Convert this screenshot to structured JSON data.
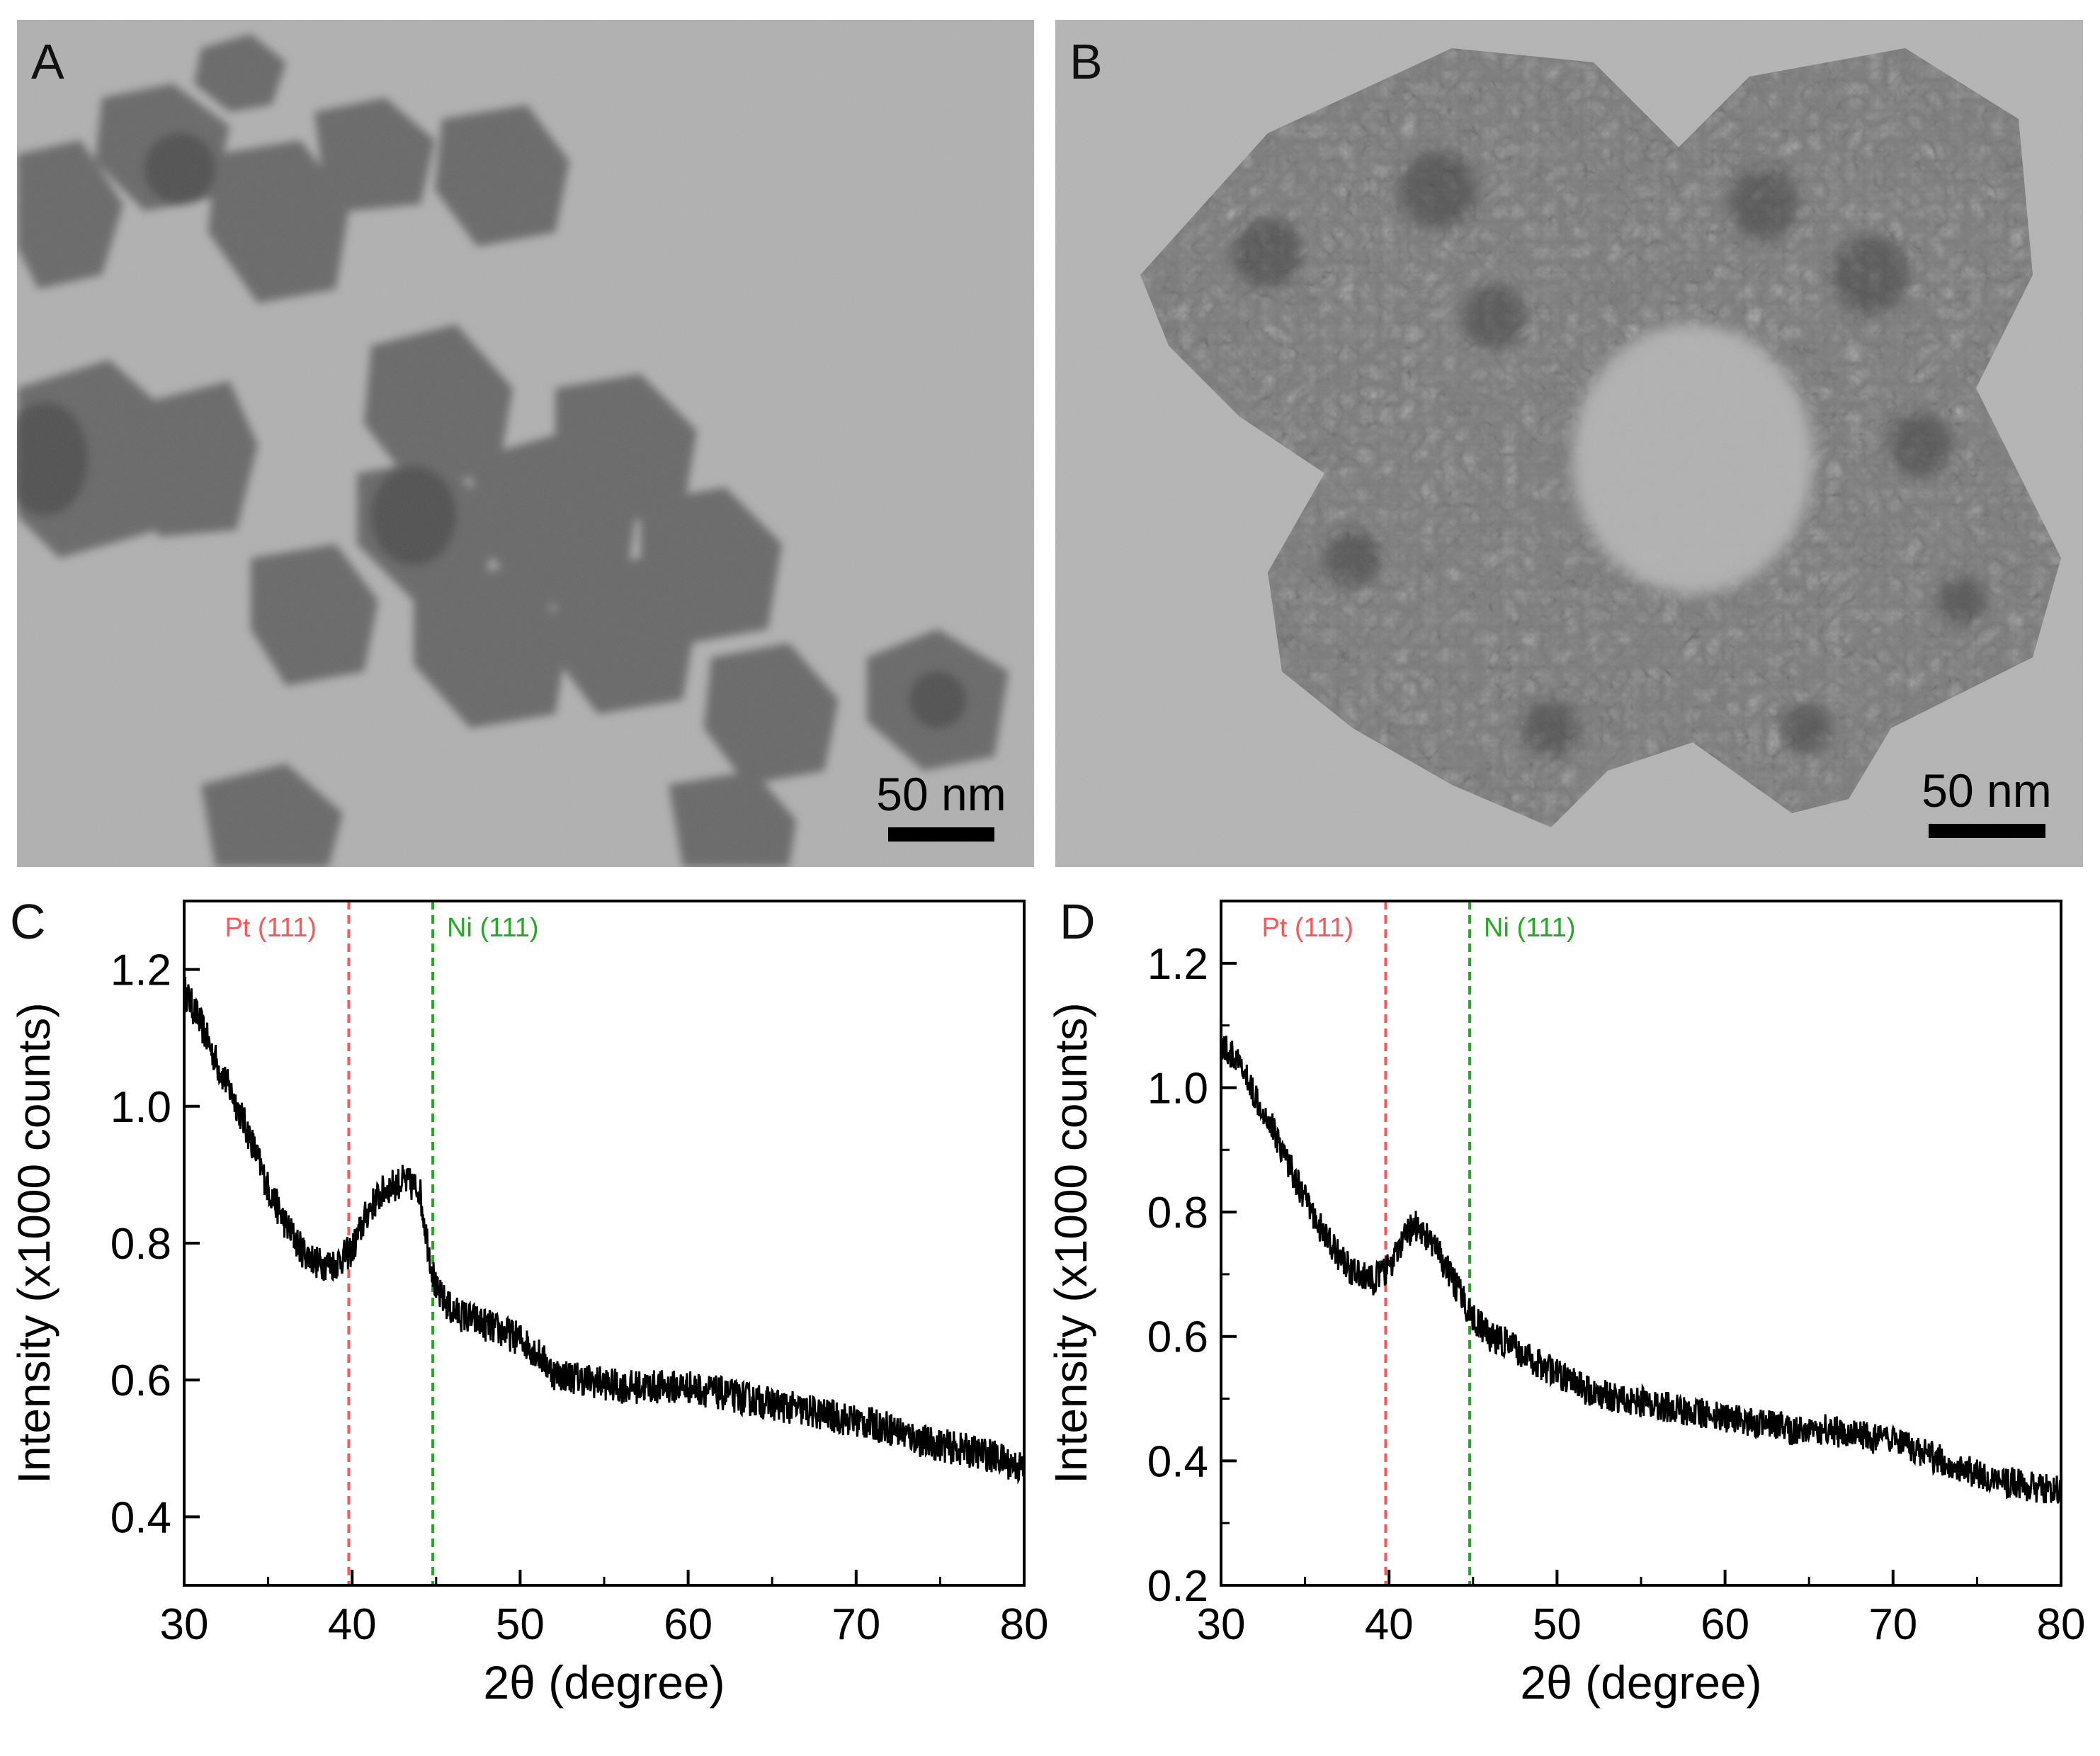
{
  "panels": {
    "A": {
      "letter": "A",
      "scale_label": "50 nm"
    },
    "B": {
      "letter": "B",
      "scale_label": "50 nm"
    },
    "C": {
      "letter": "C"
    },
    "D": {
      "letter": "D"
    }
  },
  "colors": {
    "pt_line": "#ff5555",
    "ni_line": "#22aa22",
    "trace": "#000000",
    "axis": "#000000"
  },
  "chart_data": [
    {
      "panel": "C",
      "type": "line",
      "xlabel": "2θ (degree)",
      "ylabel": "Intensity (x1000 counts)",
      "xlim": [
        30,
        80
      ],
      "ylim": [
        0.3,
        1.3
      ],
      "xticks": [
        30,
        40,
        50,
        60,
        70,
        80
      ],
      "xtick_labels": [
        "30",
        "40",
        "50",
        "60",
        "70",
        "80"
      ],
      "yticks": [
        0.4,
        0.6,
        0.8,
        1.0,
        1.2
      ],
      "ytick_labels": [
        "0.4",
        "0.6",
        "0.8",
        "1.0",
        "1.2"
      ],
      "reference_lines": [
        {
          "label": "Pt (111)",
          "x": 39.8,
          "color": "#ff5555"
        },
        {
          "label": "Ni (111)",
          "x": 44.8,
          "color": "#22aa22"
        }
      ],
      "series": [
        {
          "x": [
            30,
            31,
            32,
            33,
            34,
            35,
            36,
            37,
            38,
            39,
            40,
            41,
            42,
            43,
            44,
            44.5,
            45,
            46,
            47,
            48,
            49,
            50,
            51,
            52,
            54,
            56,
            58,
            60,
            62,
            64,
            66,
            68,
            70,
            72,
            74,
            76,
            78,
            80
          ],
          "y": [
            1.17,
            1.12,
            1.06,
            1.01,
            0.95,
            0.88,
            0.83,
            0.79,
            0.77,
            0.77,
            0.79,
            0.85,
            0.88,
            0.89,
            0.88,
            0.8,
            0.73,
            0.7,
            0.69,
            0.68,
            0.67,
            0.66,
            0.64,
            0.61,
            0.6,
            0.59,
            0.59,
            0.59,
            0.58,
            0.57,
            0.56,
            0.55,
            0.54,
            0.53,
            0.51,
            0.5,
            0.49,
            0.47
          ]
        }
      ]
    },
    {
      "panel": "D",
      "type": "line",
      "xlabel": "2θ (degree)",
      "ylabel": "Intensity (x1000 counts)",
      "xlim": [
        30,
        80
      ],
      "ylim": [
        0.2,
        1.3
      ],
      "xticks": [
        30,
        40,
        50,
        60,
        70,
        80
      ],
      "xtick_labels": [
        "30",
        "40",
        "50",
        "60",
        "70",
        "80"
      ],
      "yticks": [
        0.2,
        0.4,
        0.6,
        0.8,
        1.0,
        1.2
      ],
      "ytick_labels": [
        "0.2",
        "0.4",
        "0.6",
        "0.8",
        "1.0",
        "1.2"
      ],
      "reference_lines": [
        {
          "label": "Pt (111)",
          "x": 39.8,
          "color": "#ff5555"
        },
        {
          "label": "Ni (111)",
          "x": 44.8,
          "color": "#22aa22"
        }
      ],
      "series": [
        {
          "x": [
            30,
            31,
            32,
            33,
            34,
            35,
            36,
            37,
            38,
            39,
            40,
            41,
            41.5,
            42,
            43,
            44,
            45,
            46,
            47,
            48,
            50,
            52,
            54,
            56,
            58,
            60,
            62,
            64,
            66,
            68,
            70,
            72,
            74,
            76,
            78,
            80
          ],
          "y": [
            1.07,
            1.04,
            0.99,
            0.94,
            0.88,
            0.82,
            0.77,
            0.73,
            0.7,
            0.69,
            0.71,
            0.76,
            0.78,
            0.77,
            0.73,
            0.68,
            0.63,
            0.6,
            0.59,
            0.57,
            0.54,
            0.51,
            0.5,
            0.49,
            0.48,
            0.47,
            0.46,
            0.45,
            0.45,
            0.44,
            0.43,
            0.41,
            0.39,
            0.37,
            0.36,
            0.35
          ]
        }
      ]
    }
  ]
}
